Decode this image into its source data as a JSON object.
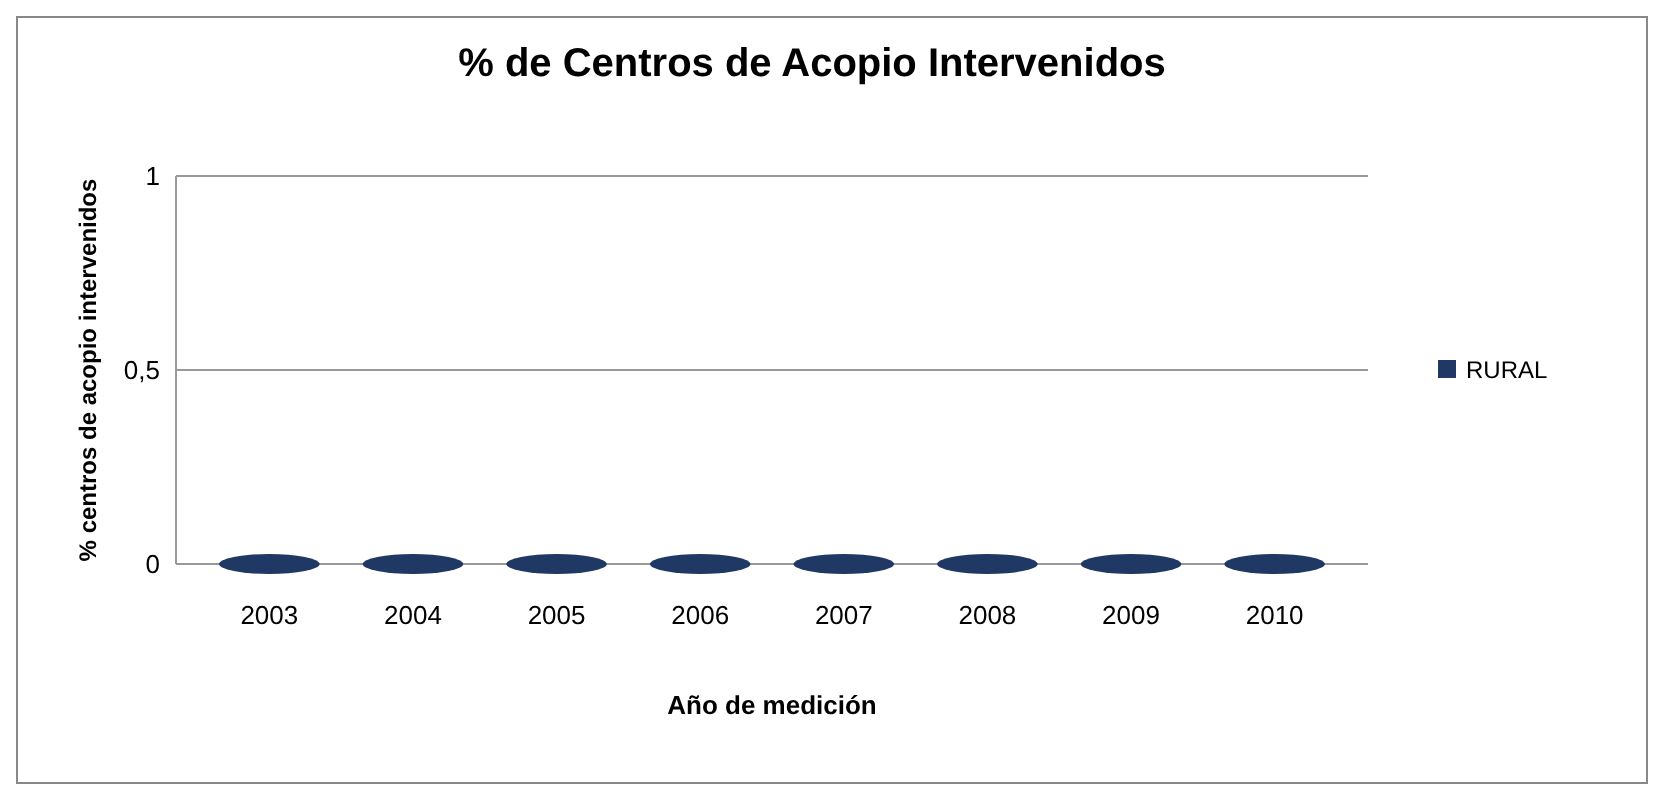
{
  "chart_data": {
    "type": "bar",
    "title": "% de Centros de Acopio Intervenidos",
    "xlabel": "Año de medición",
    "ylabel": "% centros de acopio intervenidos",
    "categories": [
      "2003",
      "2004",
      "2005",
      "2006",
      "2007",
      "2008",
      "2009",
      "2010"
    ],
    "series": [
      {
        "name": "RURAL",
        "color": "#1f3864",
        "values": [
          0,
          0,
          0,
          0,
          0,
          0,
          0,
          0
        ]
      }
    ],
    "ylim": [
      0,
      1
    ],
    "yticks": [
      0,
      {
        "value": 0.5,
        "label": "0,5"
      },
      1
    ],
    "grid": "y",
    "legend": "right"
  }
}
